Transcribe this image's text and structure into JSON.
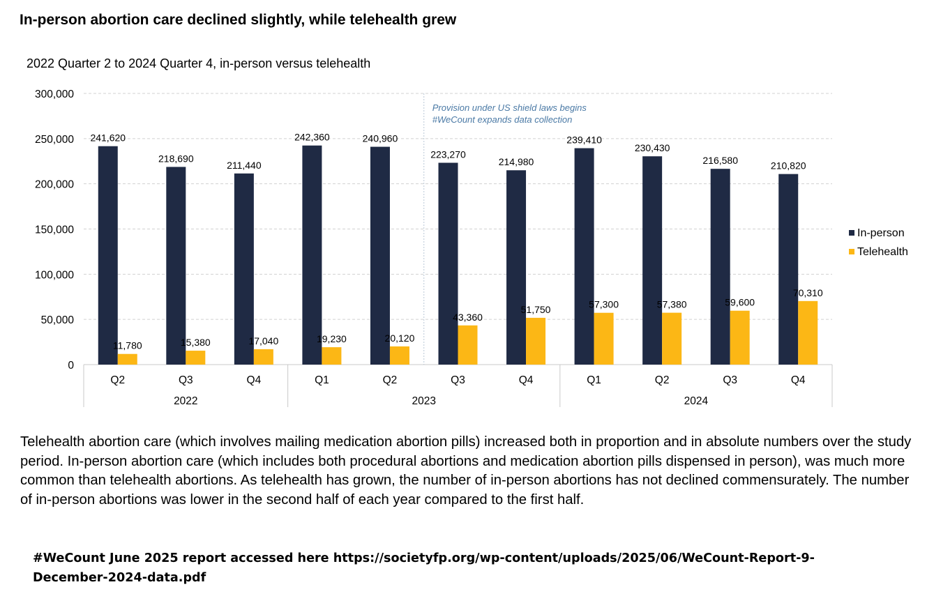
{
  "title": "In-person abortion care declined slightly, while telehealth grew",
  "subtitle": "2022 Quarter 2 to 2024 Quarter 4, in-person versus telehealth",
  "body_text": "Telehealth abortion care (which involves mailing medication abortion pills) increased both in proportion and in absolute numbers over the study period. In-person abortion care (which includes both procedural abortions and medication abortion pills dispensed in person), was much more common than telehealth abortions. As telehealth has grown, the number of in-person abortions has not declined commensurately. The number of in-person abortions was lower in the second half of each year compared to the first half.",
  "source_text": "#WeCount June 2025 report accessed here https://societyfp.org/wp-content/uploads/2025/06/WeCount-Report-9-December-2024-data.pdf",
  "colors": {
    "in_person": "#1f2a44",
    "telehealth": "#fcb715",
    "annotation": "#4a79a5",
    "grid": "#d0d0d0"
  },
  "chart_data": {
    "type": "bar",
    "categories": [
      "Q2",
      "Q3",
      "Q4",
      "Q1",
      "Q2",
      "Q3",
      "Q4",
      "Q1",
      "Q2",
      "Q3",
      "Q4"
    ],
    "groups": [
      {
        "label": "2022",
        "count": 3
      },
      {
        "label": "2023",
        "count": 4
      },
      {
        "label": "2024",
        "count": 4
      }
    ],
    "series": [
      {
        "name": "In-person",
        "color": "#1f2a44",
        "values": [
          241620,
          218690,
          211440,
          242360,
          240960,
          223270,
          214980,
          239410,
          230430,
          216580,
          210820
        ],
        "labels": [
          "241,620",
          "218,690",
          "211,440",
          "242,360",
          "240,960",
          "223,270",
          "214,980",
          "239,410",
          "230,430",
          "216,580",
          "210,820"
        ]
      },
      {
        "name": "Telehealth",
        "color": "#fcb715",
        "values": [
          11780,
          15380,
          17040,
          19230,
          20120,
          43360,
          51750,
          57300,
          57380,
          59600,
          70310
        ],
        "labels": [
          "11,780",
          "15,380",
          "17,040",
          "19,230",
          "20,120",
          "43,360",
          "51,750",
          "57,300",
          "57,380",
          "59,600",
          "70,310"
        ]
      }
    ],
    "ylim": [
      0,
      300000
    ],
    "yticks": [
      0,
      50000,
      100000,
      150000,
      200000,
      250000,
      300000
    ],
    "ytick_labels": [
      "0",
      "50,000",
      "100,000",
      "150,000",
      "200,000",
      "250,000",
      "300,000"
    ],
    "grid": true,
    "legend_position": "right",
    "annotation": {
      "after_category_index": 4,
      "lines": [
        "Provision under US shield laws begins",
        "#WeCount expands data collection"
      ]
    }
  }
}
